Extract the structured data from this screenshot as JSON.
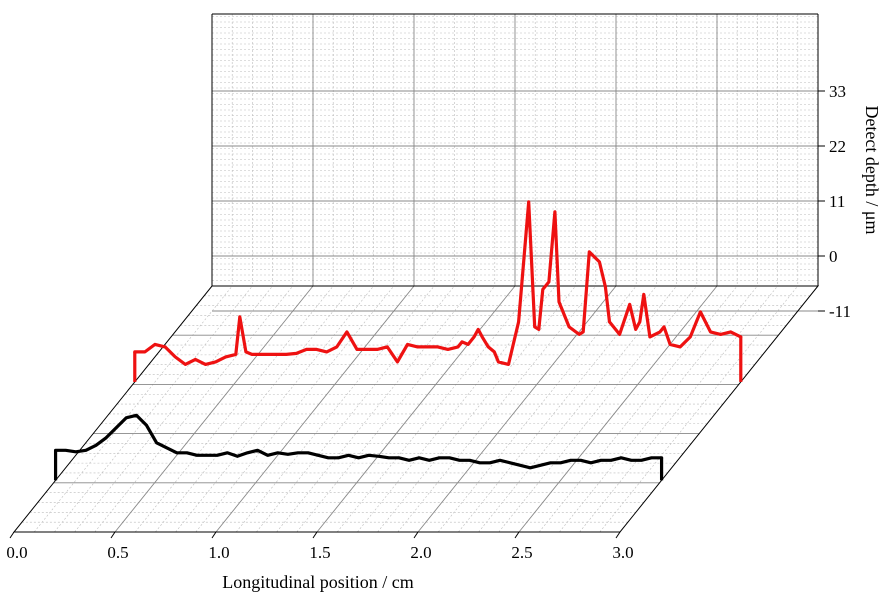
{
  "chart_data": {
    "type": "line",
    "title": "",
    "xlabel": "Longitudinal position / cm",
    "zlabel": "Detect depth / μm",
    "x_ticks": [
      "0.0",
      "0.5",
      "1.0",
      "1.5",
      "2.0",
      "2.5",
      "3.0"
    ],
    "z_ticks": [
      "-11",
      "0",
      "11",
      "22",
      "33"
    ],
    "xlim": [
      0,
      3
    ],
    "zlim": [
      -20,
      36
    ],
    "grid": true,
    "colors": {
      "front_series": "#000000",
      "back_series": "#ee1111",
      "grid_major": "#888888",
      "grid_minor": "#bbbbbb"
    },
    "series": [
      {
        "x": [
          0.0,
          0.05,
          0.1,
          0.15,
          0.2,
          0.25,
          0.3,
          0.35,
          0.4,
          0.45,
          0.5,
          0.55,
          0.6,
          0.65,
          0.7,
          0.75,
          0.8,
          0.85,
          0.9,
          0.95,
          1.0,
          1.05,
          1.1,
          1.15,
          1.2,
          1.25,
          1.3,
          1.35,
          1.4,
          1.45,
          1.5,
          1.55,
          1.6,
          1.65,
          1.7,
          1.75,
          1.8,
          1.85,
          1.9,
          1.95,
          2.0,
          2.05,
          2.1,
          2.15,
          2.2,
          2.25,
          2.3,
          2.35,
          2.4,
          2.45,
          2.5,
          2.55,
          2.6,
          2.65,
          2.7,
          2.75,
          2.8,
          2.85,
          2.9,
          2.95,
          3.0
        ],
        "y": [
          0.0,
          0.0,
          -0.3,
          0.0,
          1.0,
          2.5,
          4.5,
          6.5,
          7.0,
          5.0,
          1.5,
          0.5,
          -0.5,
          -0.5,
          -1.0,
          -1.0,
          -1.0,
          -0.5,
          -1.2,
          -0.5,
          0.0,
          -1.0,
          -0.5,
          -0.8,
          -0.5,
          -0.5,
          -1.0,
          -1.5,
          -1.5,
          -1.0,
          -1.5,
          -1.0,
          -1.2,
          -1.5,
          -1.5,
          -2.0,
          -1.5,
          -2.0,
          -1.5,
          -1.5,
          -2.0,
          -2.0,
          -2.5,
          -2.5,
          -2.0,
          -2.5,
          -3.0,
          -3.5,
          -3.0,
          -2.5,
          -2.5,
          -2.0,
          -2.0,
          -2.5,
          -2.0,
          -2.0,
          -1.5,
          -2.0,
          -2.0,
          -1.5,
          -1.5
        ]
      },
      {
        "x": [
          0.0,
          0.05,
          0.1,
          0.15,
          0.2,
          0.25,
          0.3,
          0.35,
          0.4,
          0.45,
          0.5,
          0.52,
          0.55,
          0.58,
          0.6,
          0.65,
          0.7,
          0.75,
          0.8,
          0.85,
          0.9,
          0.95,
          1.0,
          1.05,
          1.1,
          1.15,
          1.2,
          1.25,
          1.3,
          1.35,
          1.4,
          1.45,
          1.5,
          1.55,
          1.6,
          1.62,
          1.65,
          1.68,
          1.7,
          1.72,
          1.75,
          1.78,
          1.8,
          1.85,
          1.9,
          1.95,
          1.98,
          2.0,
          2.02,
          2.05,
          2.08,
          2.1,
          2.15,
          2.2,
          2.22,
          2.25,
          2.3,
          2.33,
          2.35,
          2.4,
          2.45,
          2.48,
          2.5,
          2.52,
          2.55,
          2.6,
          2.62,
          2.65,
          2.7,
          2.75,
          2.8,
          2.85,
          2.9,
          2.95,
          3.0
        ],
        "y": [
          0.0,
          0.0,
          1.5,
          1.0,
          -1.0,
          -2.5,
          -1.5,
          -2.5,
          -2.0,
          -1.0,
          -0.5,
          7.0,
          0.0,
          -0.5,
          -0.5,
          -0.5,
          -0.5,
          -0.5,
          -0.3,
          0.5,
          0.5,
          0.0,
          1.0,
          4.0,
          0.5,
          0.5,
          0.5,
          1.0,
          -2.0,
          1.5,
          1.0,
          1.0,
          1.0,
          0.5,
          1.0,
          2.0,
          1.5,
          3.0,
          4.5,
          3.0,
          1.0,
          0.0,
          -2.0,
          -2.5,
          6.0,
          30.0,
          5.0,
          4.5,
          12.5,
          14.0,
          28.0,
          10.0,
          5.0,
          3.5,
          4.0,
          20.0,
          18.0,
          13.0,
          6.0,
          3.5,
          9.5,
          4.5,
          6.0,
          11.5,
          3.0,
          4.0,
          5.0,
          1.5,
          1.0,
          3.0,
          8.0,
          4.0,
          3.5,
          4.0,
          3.0
        ]
      }
    ]
  }
}
